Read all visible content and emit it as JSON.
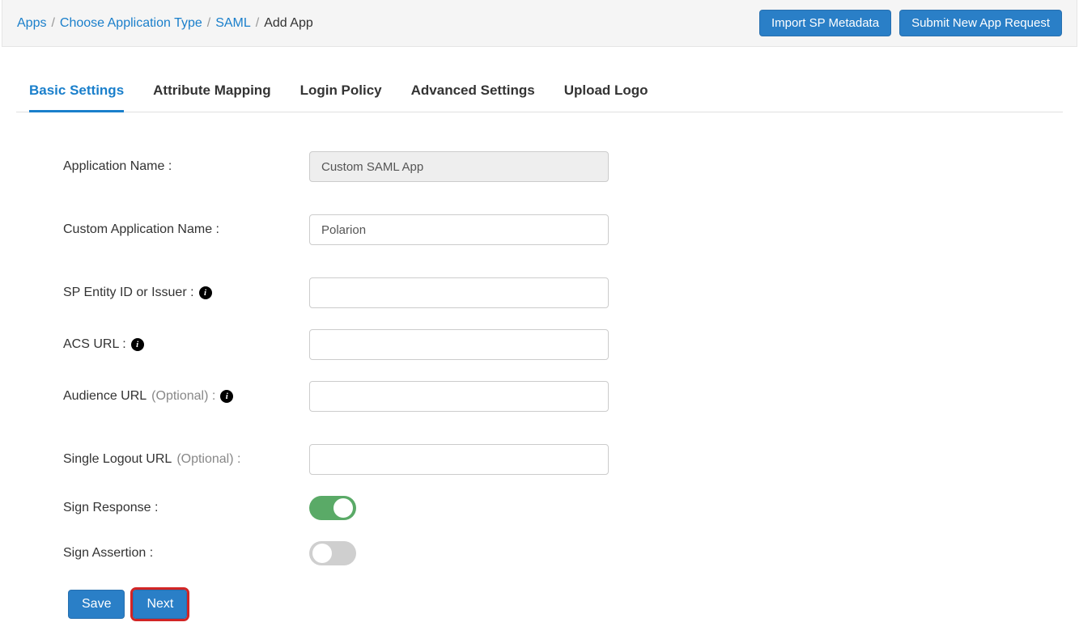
{
  "breadcrumb": {
    "items": [
      {
        "label": "Apps",
        "link": true
      },
      {
        "label": "Choose Application Type",
        "link": true
      },
      {
        "label": "SAML",
        "link": true
      },
      {
        "label": "Add App",
        "link": false
      }
    ]
  },
  "header_actions": {
    "import": "Import SP Metadata",
    "submit": "Submit New App Request"
  },
  "tabs": [
    {
      "label": "Basic Settings",
      "active": true
    },
    {
      "label": "Attribute Mapping",
      "active": false
    },
    {
      "label": "Login Policy",
      "active": false
    },
    {
      "label": "Advanced Settings",
      "active": false
    },
    {
      "label": "Upload Logo",
      "active": false
    }
  ],
  "form": {
    "app_name": {
      "label": "Application Name :",
      "value": "Custom SAML App",
      "readonly": true
    },
    "custom_name": {
      "label": "Custom Application Name :",
      "value": "Polarion"
    },
    "sp_entity": {
      "label": "SP Entity ID or Issuer :",
      "value": "",
      "info": true
    },
    "acs_url": {
      "label": "ACS URL :",
      "value": "",
      "info": true
    },
    "audience_url": {
      "label_main": "Audience URL",
      "label_optional": "(Optional) :",
      "value": "",
      "info": true
    },
    "slo_url": {
      "label_main": "Single Logout URL",
      "label_optional": "(Optional) :",
      "value": ""
    },
    "sign_response": {
      "label": "Sign Response :",
      "on": true
    },
    "sign_assertion": {
      "label": "Sign Assertion :",
      "on": false
    }
  },
  "buttons": {
    "save": "Save",
    "next": "Next"
  },
  "colors": {
    "primary": "#2a7fc7",
    "link": "#1a7fcb",
    "toggle_on": "#5aaa67",
    "toggle_off": "#cfcfcf",
    "highlight_border": "#d22525"
  }
}
